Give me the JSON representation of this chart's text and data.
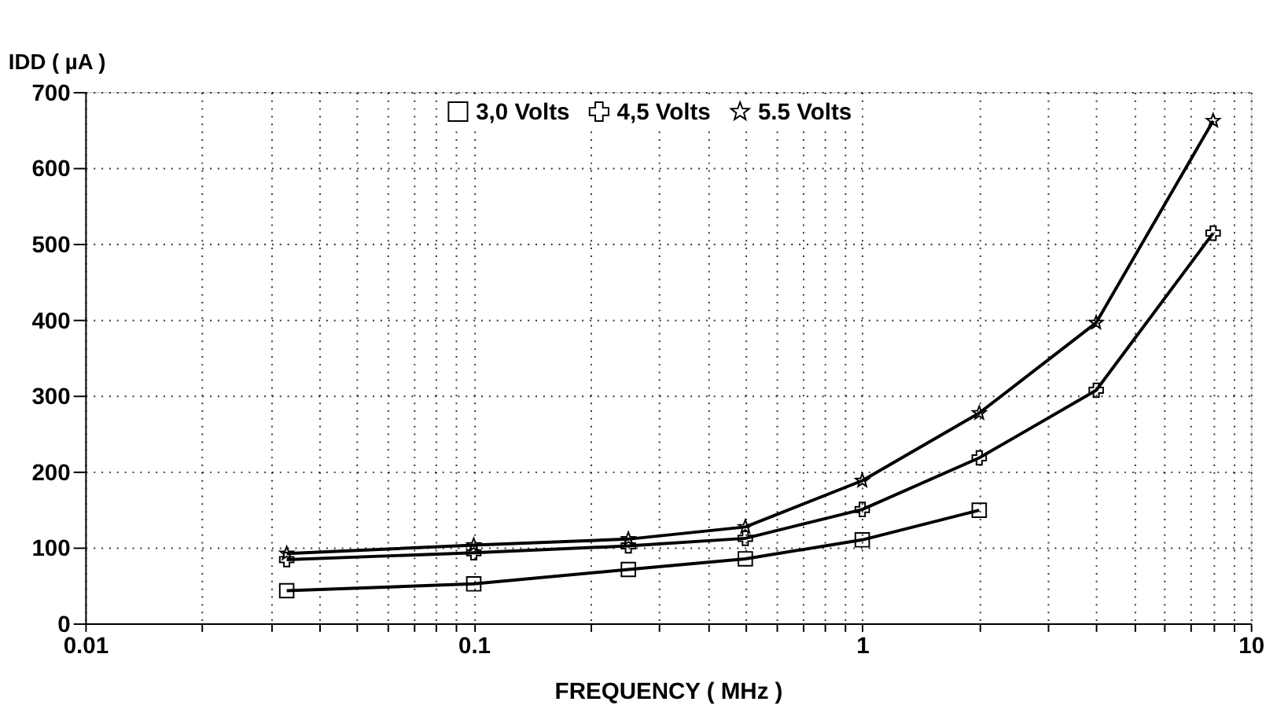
{
  "chart_data": {
    "type": "line",
    "xlabel": "FREQUENCY ( MHz )",
    "ylabel": "IDD ( µA )",
    "x": [
      0.033,
      0.1,
      0.25,
      0.5,
      1,
      2,
      4,
      8
    ],
    "series": [
      {
        "name": "3,0 Volts",
        "color": "#000000",
        "marker": "square",
        "values": [
          43,
          52,
          71,
          85,
          110,
          149,
          null,
          null
        ]
      },
      {
        "name": "4,5 Volts",
        "color": "#000000",
        "marker": "cross",
        "values": [
          84,
          93,
          102,
          112,
          150,
          218,
          307,
          514
        ]
      },
      {
        "name": "5.5 Volts",
        "color": "#000000",
        "marker": "star",
        "values": [
          92,
          103,
          111,
          127,
          188,
          277,
          396,
          662
        ]
      }
    ],
    "log": "x",
    "xlim": [
      0.01,
      10
    ],
    "xticks": [
      0.01,
      {
        "value": 0.02,
        "label": null
      },
      {
        "value": 0.03,
        "label": null
      },
      {
        "value": 0.04,
        "label": null
      },
      {
        "value": 0.05,
        "label": null
      },
      {
        "value": 0.06,
        "label": null
      },
      {
        "value": 0.07,
        "label": null
      },
      {
        "value": 0.08,
        "label": null
      },
      {
        "value": 0.09,
        "label": null
      },
      0.1,
      {
        "value": 0.2,
        "label": null
      },
      {
        "value": 0.3,
        "label": null
      },
      {
        "value": 0.4,
        "label": null
      },
      {
        "value": 0.5,
        "label": null
      },
      {
        "value": 0.6,
        "label": null
      },
      {
        "value": 0.7,
        "label": null
      },
      {
        "value": 0.8,
        "label": null
      },
      {
        "value": 0.9,
        "label": null
      },
      1,
      {
        "value": 2,
        "label": null
      },
      {
        "value": 3,
        "label": null
      },
      {
        "value": 4,
        "label": null
      },
      {
        "value": 5,
        "label": null
      },
      {
        "value": 6,
        "label": null
      },
      {
        "value": 7,
        "label": null
      },
      {
        "value": 8,
        "label": null
      },
      {
        "value": 9,
        "label": null
      },
      10
    ],
    "ylim": [
      0,
      700
    ],
    "yticks": [
      0,
      100,
      200,
      300,
      400,
      500,
      600,
      700
    ],
    "grid": true,
    "legend": "top",
    "line_style": "solid"
  }
}
